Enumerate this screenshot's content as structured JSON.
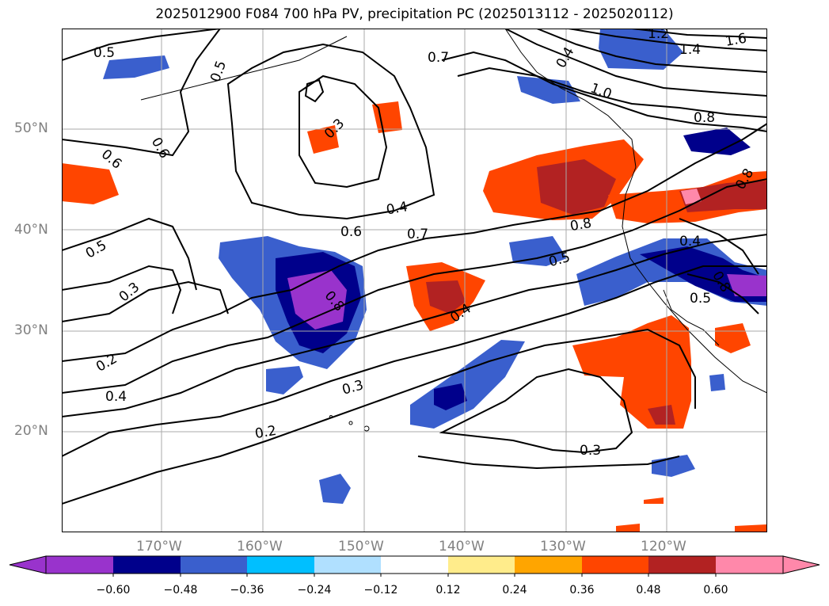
{
  "title": "2025012900 F084 700 hPa PV, precipitation PC (2025013112 - 2025020112)",
  "lat_labels": [
    "50°N",
    "40°N",
    "30°N",
    "20°N"
  ],
  "lon_labels": [
    "170°W",
    "160°W",
    "150°W",
    "140°W",
    "130°W",
    "120°W"
  ],
  "contour_labels": [
    "0.5",
    "0.5",
    "0.6",
    "0.6",
    "0.3",
    "0.7",
    "0.4",
    "0.4",
    "1.0",
    "0.8",
    "1.2",
    "1.4",
    "1.6",
    "0.8",
    "0.4",
    "0.6",
    "0.7",
    "0.8",
    "0.5",
    "0.5",
    "0.4",
    "0.8",
    "0.5",
    "0.3",
    "0.2",
    "0.4",
    "0.3",
    "0.2",
    "0.3",
    "0.8"
  ],
  "colorbar": {
    "ticks": [
      "−0.60",
      "−0.48",
      "−0.36",
      "−0.24",
      "−0.12",
      "0.12",
      "0.24",
      "0.36",
      "0.48",
      "0.60"
    ],
    "colors": [
      "#9933cc",
      "#00008b",
      "#3a5fcd",
      "#00bfff",
      "#b0e0ff",
      "#ffffff",
      "#ffec8b",
      "#ffa500",
      "#ff4500",
      "#b22222",
      "#ff88aa",
      "#ff88aa"
    ]
  },
  "map": {
    "projection": "PlateCarree",
    "lon_range": [
      -177,
      -107
    ],
    "lat_range": [
      10,
      60
    ],
    "grid": true
  }
}
